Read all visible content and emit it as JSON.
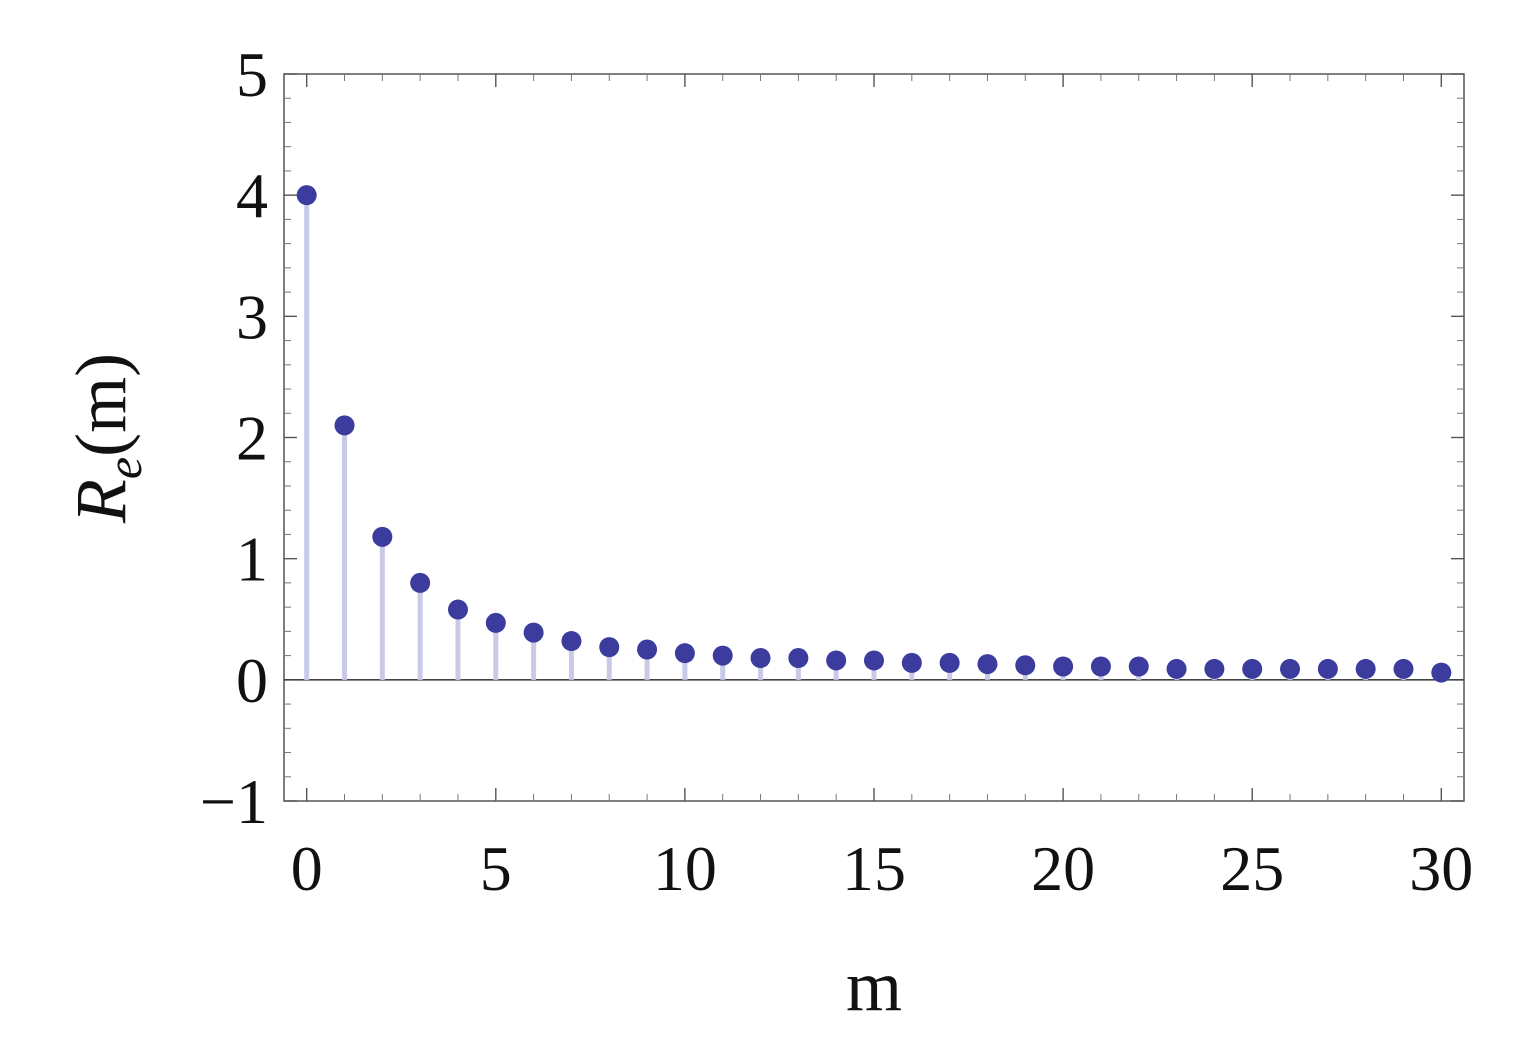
{
  "chart_data": {
    "type": "scatter",
    "style": "stem",
    "xlabel": "m",
    "ylabel": {
      "base": "R",
      "subscript": "e",
      "suffix": "(m)"
    },
    "xlim": [
      -0.6,
      30.6
    ],
    "ylim": [
      -1,
      5
    ],
    "xticks": [
      0,
      5,
      10,
      15,
      20,
      25,
      30
    ],
    "xtick_labels": [
      "0",
      "5",
      "10",
      "15",
      "20",
      "25",
      "30"
    ],
    "yticks": [
      -1,
      0,
      1,
      2,
      3,
      4,
      5
    ],
    "ytick_labels": [
      "−1",
      "0",
      "1",
      "2",
      "3",
      "4",
      "5"
    ],
    "grid": false,
    "series": [
      {
        "x": [
          0,
          1,
          2,
          3,
          4,
          5,
          6,
          7,
          8,
          9,
          10,
          11,
          12,
          13,
          14,
          15,
          16,
          17,
          18,
          19,
          20,
          21,
          22,
          23,
          24,
          25,
          26,
          27,
          28,
          29,
          30
        ],
        "y": [
          4.0,
          2.1,
          1.18,
          0.8,
          0.58,
          0.47,
          0.39,
          0.32,
          0.27,
          0.25,
          0.22,
          0.2,
          0.18,
          0.18,
          0.16,
          0.16,
          0.14,
          0.14,
          0.13,
          0.12,
          0.11,
          0.11,
          0.11,
          0.09,
          0.09,
          0.09,
          0.09,
          0.09,
          0.09,
          0.09,
          0.06
        ],
        "color": "#3c3c9e",
        "stem_color": "#c9c9e8"
      }
    ]
  }
}
